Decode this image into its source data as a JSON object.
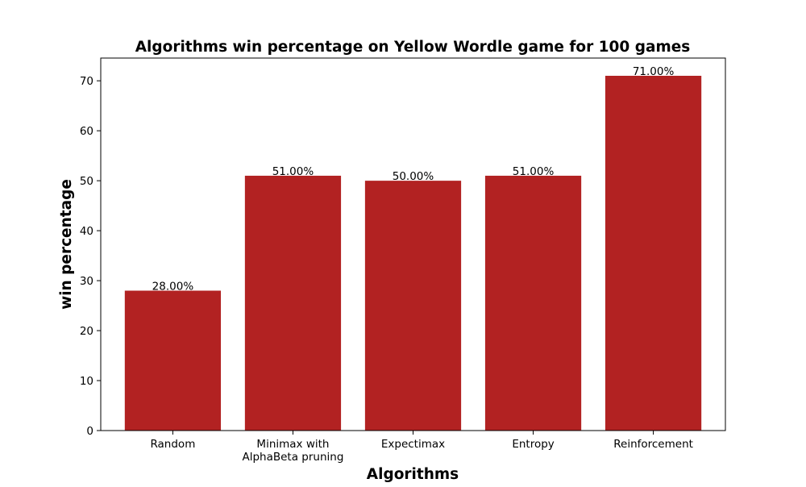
{
  "chart_data": {
    "type": "bar",
    "title": "Algorithms win percentage on Yellow Wordle game for 100 games",
    "xlabel": "Algorithms",
    "ylabel": "win percentage",
    "categories": [
      [
        "Random"
      ],
      [
        "Minimax with",
        "AlphaBeta pruning"
      ],
      [
        "Expectimax"
      ],
      [
        "Entropy"
      ],
      [
        "Reinforcement"
      ]
    ],
    "values": [
      28,
      51,
      50,
      51,
      71
    ],
    "data_labels": [
      "28.00%",
      "51.00%",
      "50.00%",
      "51.00%",
      "71.00%"
    ],
    "ylim": [
      0,
      74.55
    ],
    "yticks": [
      0,
      10,
      20,
      30,
      40,
      50,
      60,
      70
    ],
    "bar_color": "#b22222",
    "grid": false,
    "legend": "none"
  }
}
